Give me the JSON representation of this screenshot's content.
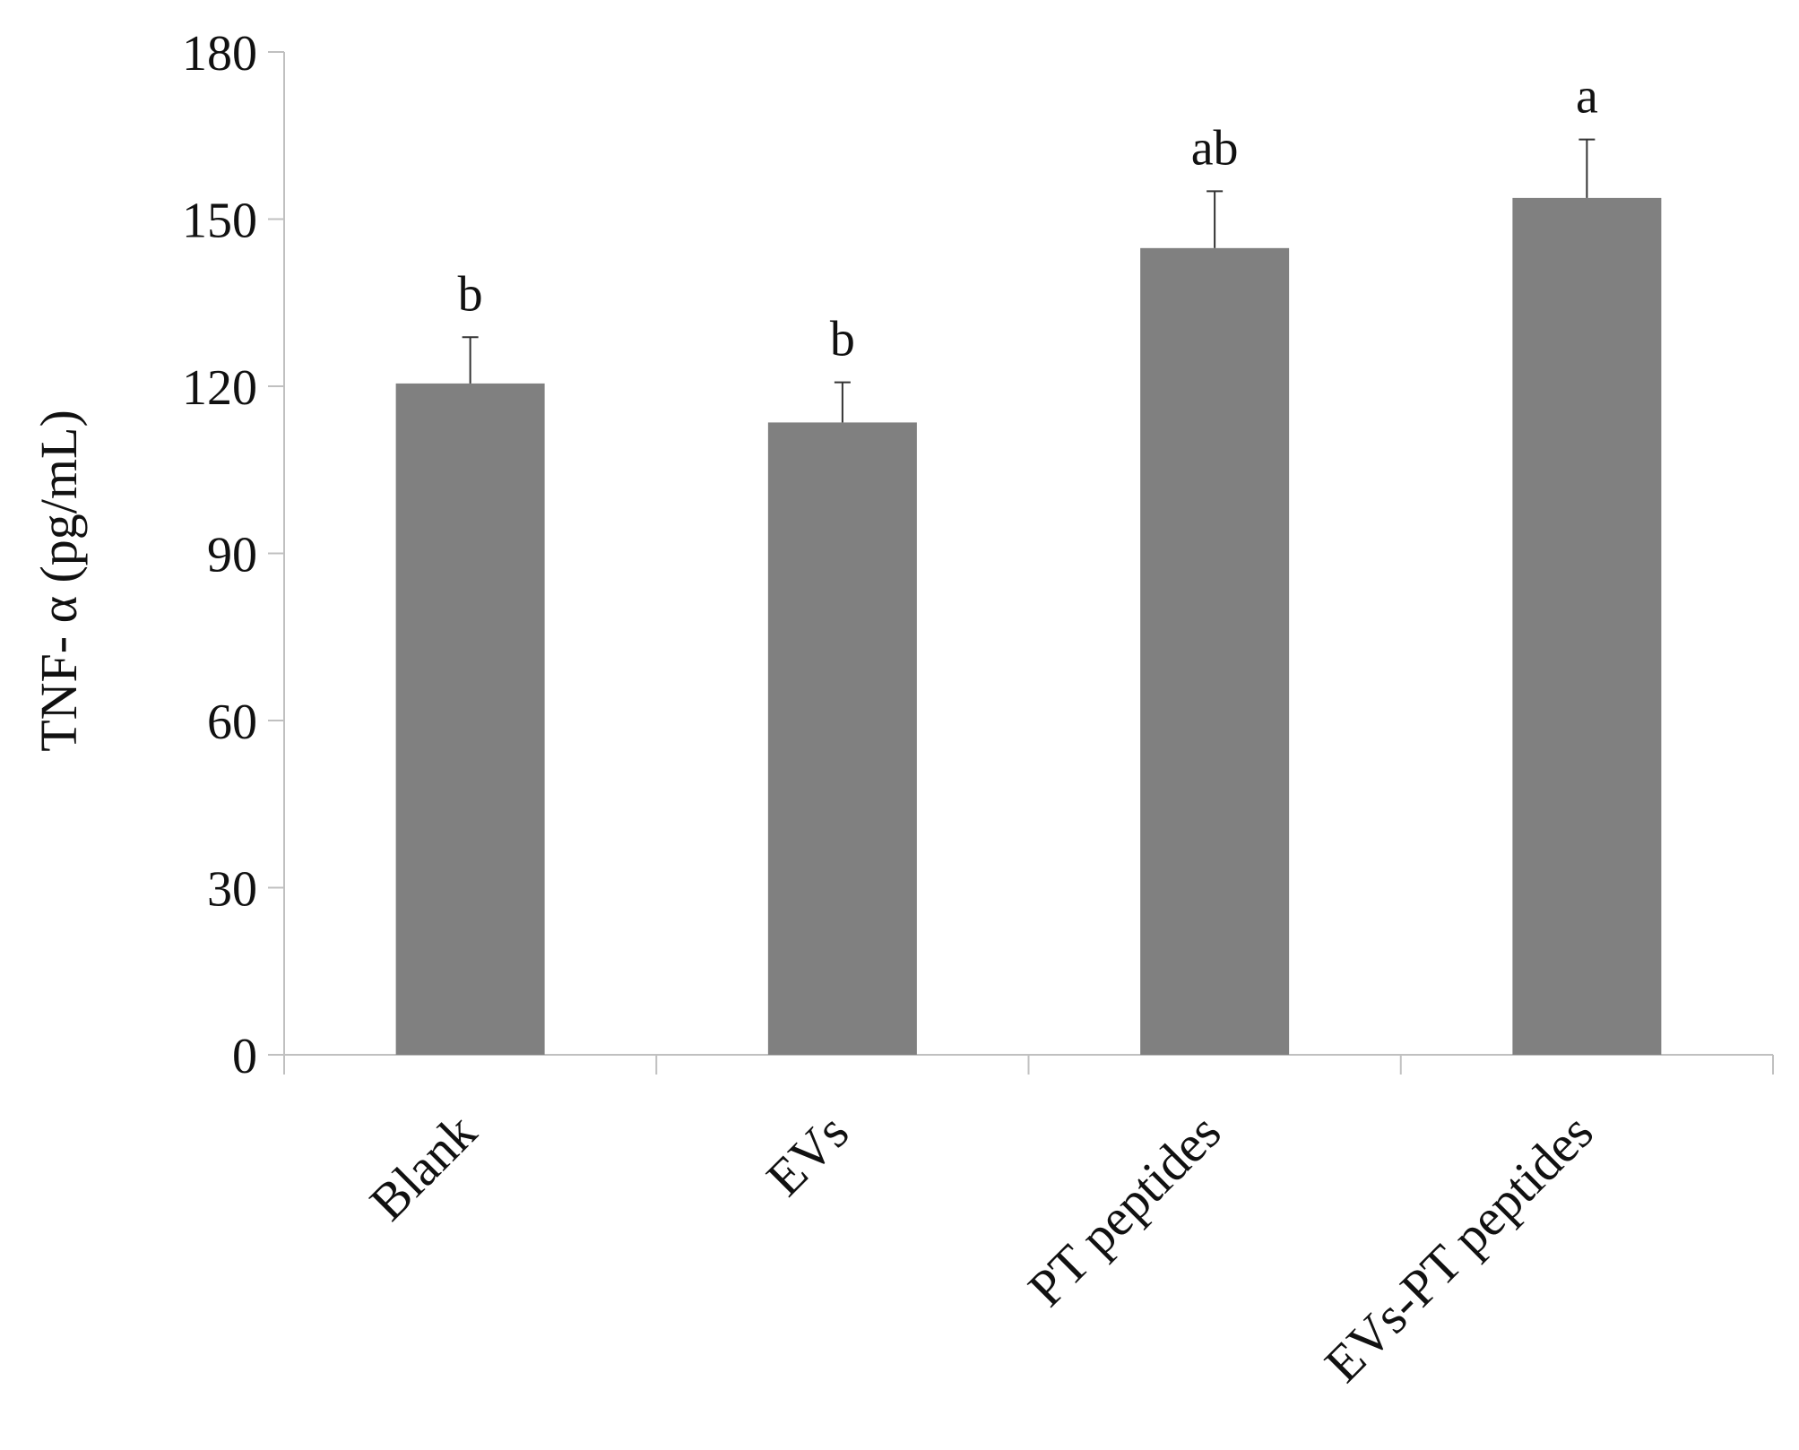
{
  "chart_data": {
    "type": "bar",
    "title": "",
    "xlabel": "",
    "ylabel": "TNF- α (pg/mL)",
    "categories": [
      "Blank",
      "EVs",
      "PT peptides",
      "EVs-PT peptides"
    ],
    "values": [
      120.5,
      113.5,
      144.8,
      153.8
    ],
    "errors": [
      8.3,
      7.2,
      10.2,
      10.5
    ],
    "significance_letters": [
      "b",
      "b",
      "ab",
      "a"
    ],
    "ylim": [
      0,
      180
    ],
    "yticks": [
      "0",
      "30",
      "60",
      "90",
      "120",
      "150",
      "180"
    ],
    "grid": false,
    "legend": "none",
    "colors": {
      "bar": "#808080",
      "axis": "#c0c0c0",
      "text": "#111111"
    }
  }
}
